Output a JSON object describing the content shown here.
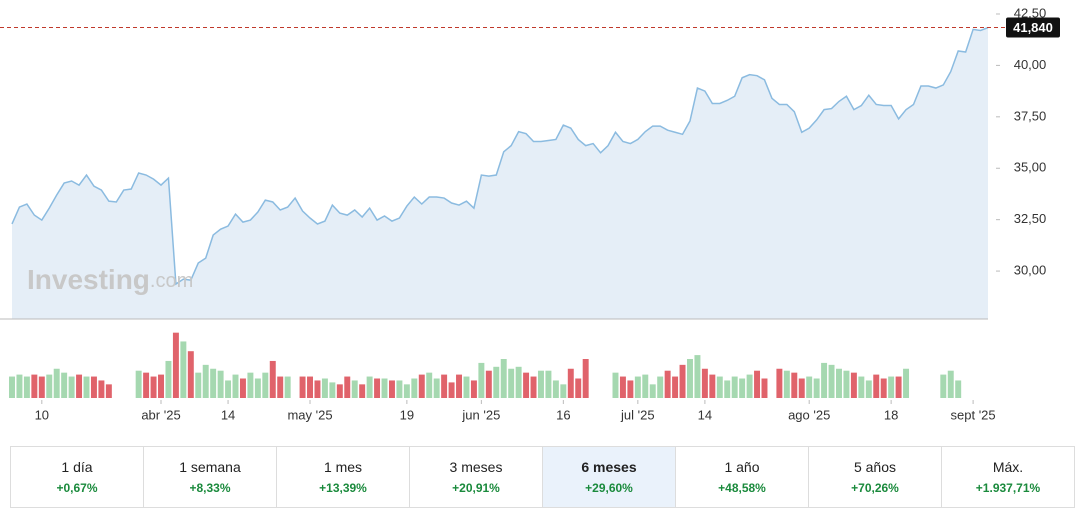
{
  "chart_data": {
    "type": "line",
    "x": [
      0,
      1,
      2,
      3,
      4,
      5,
      6,
      7,
      8,
      9,
      10,
      11,
      12,
      13,
      14,
      15,
      16,
      17,
      18,
      19,
      20,
      21,
      22,
      23,
      24,
      25,
      26,
      27,
      28,
      29,
      30,
      31,
      32,
      33,
      34,
      35,
      36,
      37,
      38,
      39,
      40,
      41,
      42,
      43,
      44,
      45,
      46,
      47,
      48,
      49,
      50,
      51,
      52,
      53,
      54,
      55,
      56,
      57,
      58,
      59,
      60,
      61,
      62,
      63,
      64,
      65,
      66,
      67,
      68,
      69,
      70,
      71,
      72,
      73,
      74,
      75,
      76,
      77,
      78,
      79,
      80,
      81,
      82,
      83,
      84,
      85,
      86,
      87,
      88,
      89,
      90,
      91,
      92,
      93,
      94,
      95,
      96,
      97,
      98,
      99,
      100,
      101,
      102,
      103,
      104,
      105,
      106,
      107,
      108,
      109,
      110,
      111,
      112,
      113,
      114,
      115,
      116,
      117,
      118,
      119,
      120,
      121,
      122,
      123,
      124,
      125,
      126,
      127,
      128,
      129,
      130,
      131
    ],
    "values": [
      32.29,
      33.11,
      33.26,
      32.72,
      32.48,
      33.06,
      33.7,
      34.28,
      34.38,
      34.18,
      34.67,
      34.13,
      33.94,
      33.4,
      33.36,
      33.94,
      33.99,
      34.77,
      34.67,
      34.47,
      34.18,
      34.52,
      29.37,
      29.61,
      29.56,
      30.39,
      30.63,
      31.75,
      32.04,
      32.19,
      32.77,
      32.38,
      32.48,
      32.87,
      33.45,
      33.36,
      32.97,
      33.11,
      33.55,
      32.92,
      32.58,
      32.29,
      32.43,
      33.21,
      32.82,
      32.72,
      32.97,
      32.63,
      33.06,
      32.48,
      32.68,
      32.43,
      32.58,
      33.16,
      33.6,
      33.26,
      33.6,
      33.6,
      33.55,
      33.31,
      33.21,
      33.4,
      33.06,
      34.67,
      34.62,
      34.67,
      35.8,
      36.1,
      36.78,
      36.68,
      36.3,
      36.3,
      36.35,
      36.4,
      37.1,
      36.95,
      36.4,
      36.1,
      36.2,
      35.75,
      36.1,
      36.75,
      36.3,
      36.2,
      36.4,
      36.78,
      37.05,
      37.05,
      36.85,
      36.75,
      36.65,
      37.3,
      38.9,
      38.75,
      38.15,
      38.15,
      38.3,
      38.5,
      39.4,
      39.55,
      39.5,
      39.3,
      38.4,
      38.1,
      38.1,
      37.75,
      36.75,
      36.95,
      37.35,
      37.85,
      37.9,
      38.25,
      38.5,
      37.85,
      38.05,
      38.55,
      38.1,
      38.05,
      38.05,
      37.4,
      37.85,
      38.1,
      39.0,
      39.0,
      38.9,
      39.05,
      39.7,
      40.7,
      40.65,
      41.75,
      41.7,
      41.84
    ],
    "color": "#8bbbe0",
    "fill_color": "#e5eef7",
    "xlim": [
      0,
      131
    ],
    "ylim": [
      27.67,
      43.18
    ],
    "yticks": [
      {
        "value": 30,
        "label": "30,00"
      },
      {
        "value": 32.5,
        "label": "32,50"
      },
      {
        "value": 35,
        "label": "35,00"
      },
      {
        "value": 37.5,
        "label": "37,50"
      },
      {
        "value": 40,
        "label": "40,00"
      },
      {
        "value": 42.5,
        "label": "42,50"
      }
    ],
    "xticks": [
      {
        "value": 4,
        "label": "10"
      },
      {
        "value": 20,
        "label": "abr '25"
      },
      {
        "value": 29,
        "label": "14"
      },
      {
        "value": 40,
        "label": "may '25"
      },
      {
        "value": 53,
        "label": "19"
      },
      {
        "value": 63,
        "label": "jun '25"
      },
      {
        "value": 74,
        "label": "16"
      },
      {
        "value": 84,
        "label": "jul '25"
      },
      {
        "value": 93,
        "label": "14"
      },
      {
        "value": 107,
        "label": "ago '25"
      },
      {
        "value": 118,
        "label": "18"
      },
      {
        "value": 129,
        "label": "sept '25"
      }
    ],
    "last_price": {
      "value": 41.84,
      "label": "41,840"
    },
    "watermark": {
      "brand": "Investing",
      "suffix": ".com"
    },
    "volume": {
      "values": [
        22,
        24,
        22,
        24,
        22,
        24,
        30,
        26,
        22,
        24,
        22,
        22,
        18,
        14,
        null,
        null,
        null,
        28,
        26,
        22,
        24,
        38,
        67,
        58,
        48,
        26,
        34,
        30,
        28,
        18,
        24,
        20,
        26,
        20,
        26,
        38,
        22,
        22,
        null,
        22,
        22,
        18,
        20,
        16,
        14,
        22,
        18,
        14,
        22,
        20,
        20,
        18,
        18,
        14,
        20,
        24,
        26,
        20,
        24,
        16,
        24,
        22,
        18,
        36,
        28,
        32,
        40,
        30,
        32,
        26,
        22,
        28,
        28,
        18,
        14,
        30,
        20,
        40,
        null,
        null,
        null,
        26,
        22,
        18,
        22,
        24,
        14,
        22,
        28,
        22,
        34,
        40,
        44,
        30,
        24,
        22,
        18,
        22,
        20,
        24,
        28,
        20,
        null,
        30,
        28,
        26,
        20,
        22,
        20,
        36,
        34,
        30,
        28,
        26,
        22,
        18,
        24,
        20,
        22,
        22,
        30,
        null,
        null,
        null,
        null,
        24,
        28,
        18,
        null,
        null,
        null,
        null
      ],
      "ylim": [
        0,
        80
      ],
      "up_color": "#a5d8b0",
      "down_color": "#e0636b"
    }
  },
  "periods": [
    {
      "label": "1 día",
      "change": "+0,67%"
    },
    {
      "label": "1 semana",
      "change": "+8,33%"
    },
    {
      "label": "1 mes",
      "change": "+13,39%"
    },
    {
      "label": "3 meses",
      "change": "+20,91%"
    },
    {
      "label": "6 meses",
      "change": "+29,60%"
    },
    {
      "label": "1 año",
      "change": "+48,58%"
    },
    {
      "label": "5 años",
      "change": "+70,26%"
    },
    {
      "label": "Máx.",
      "change": "+1.937,71%"
    }
  ],
  "active_period": 4
}
